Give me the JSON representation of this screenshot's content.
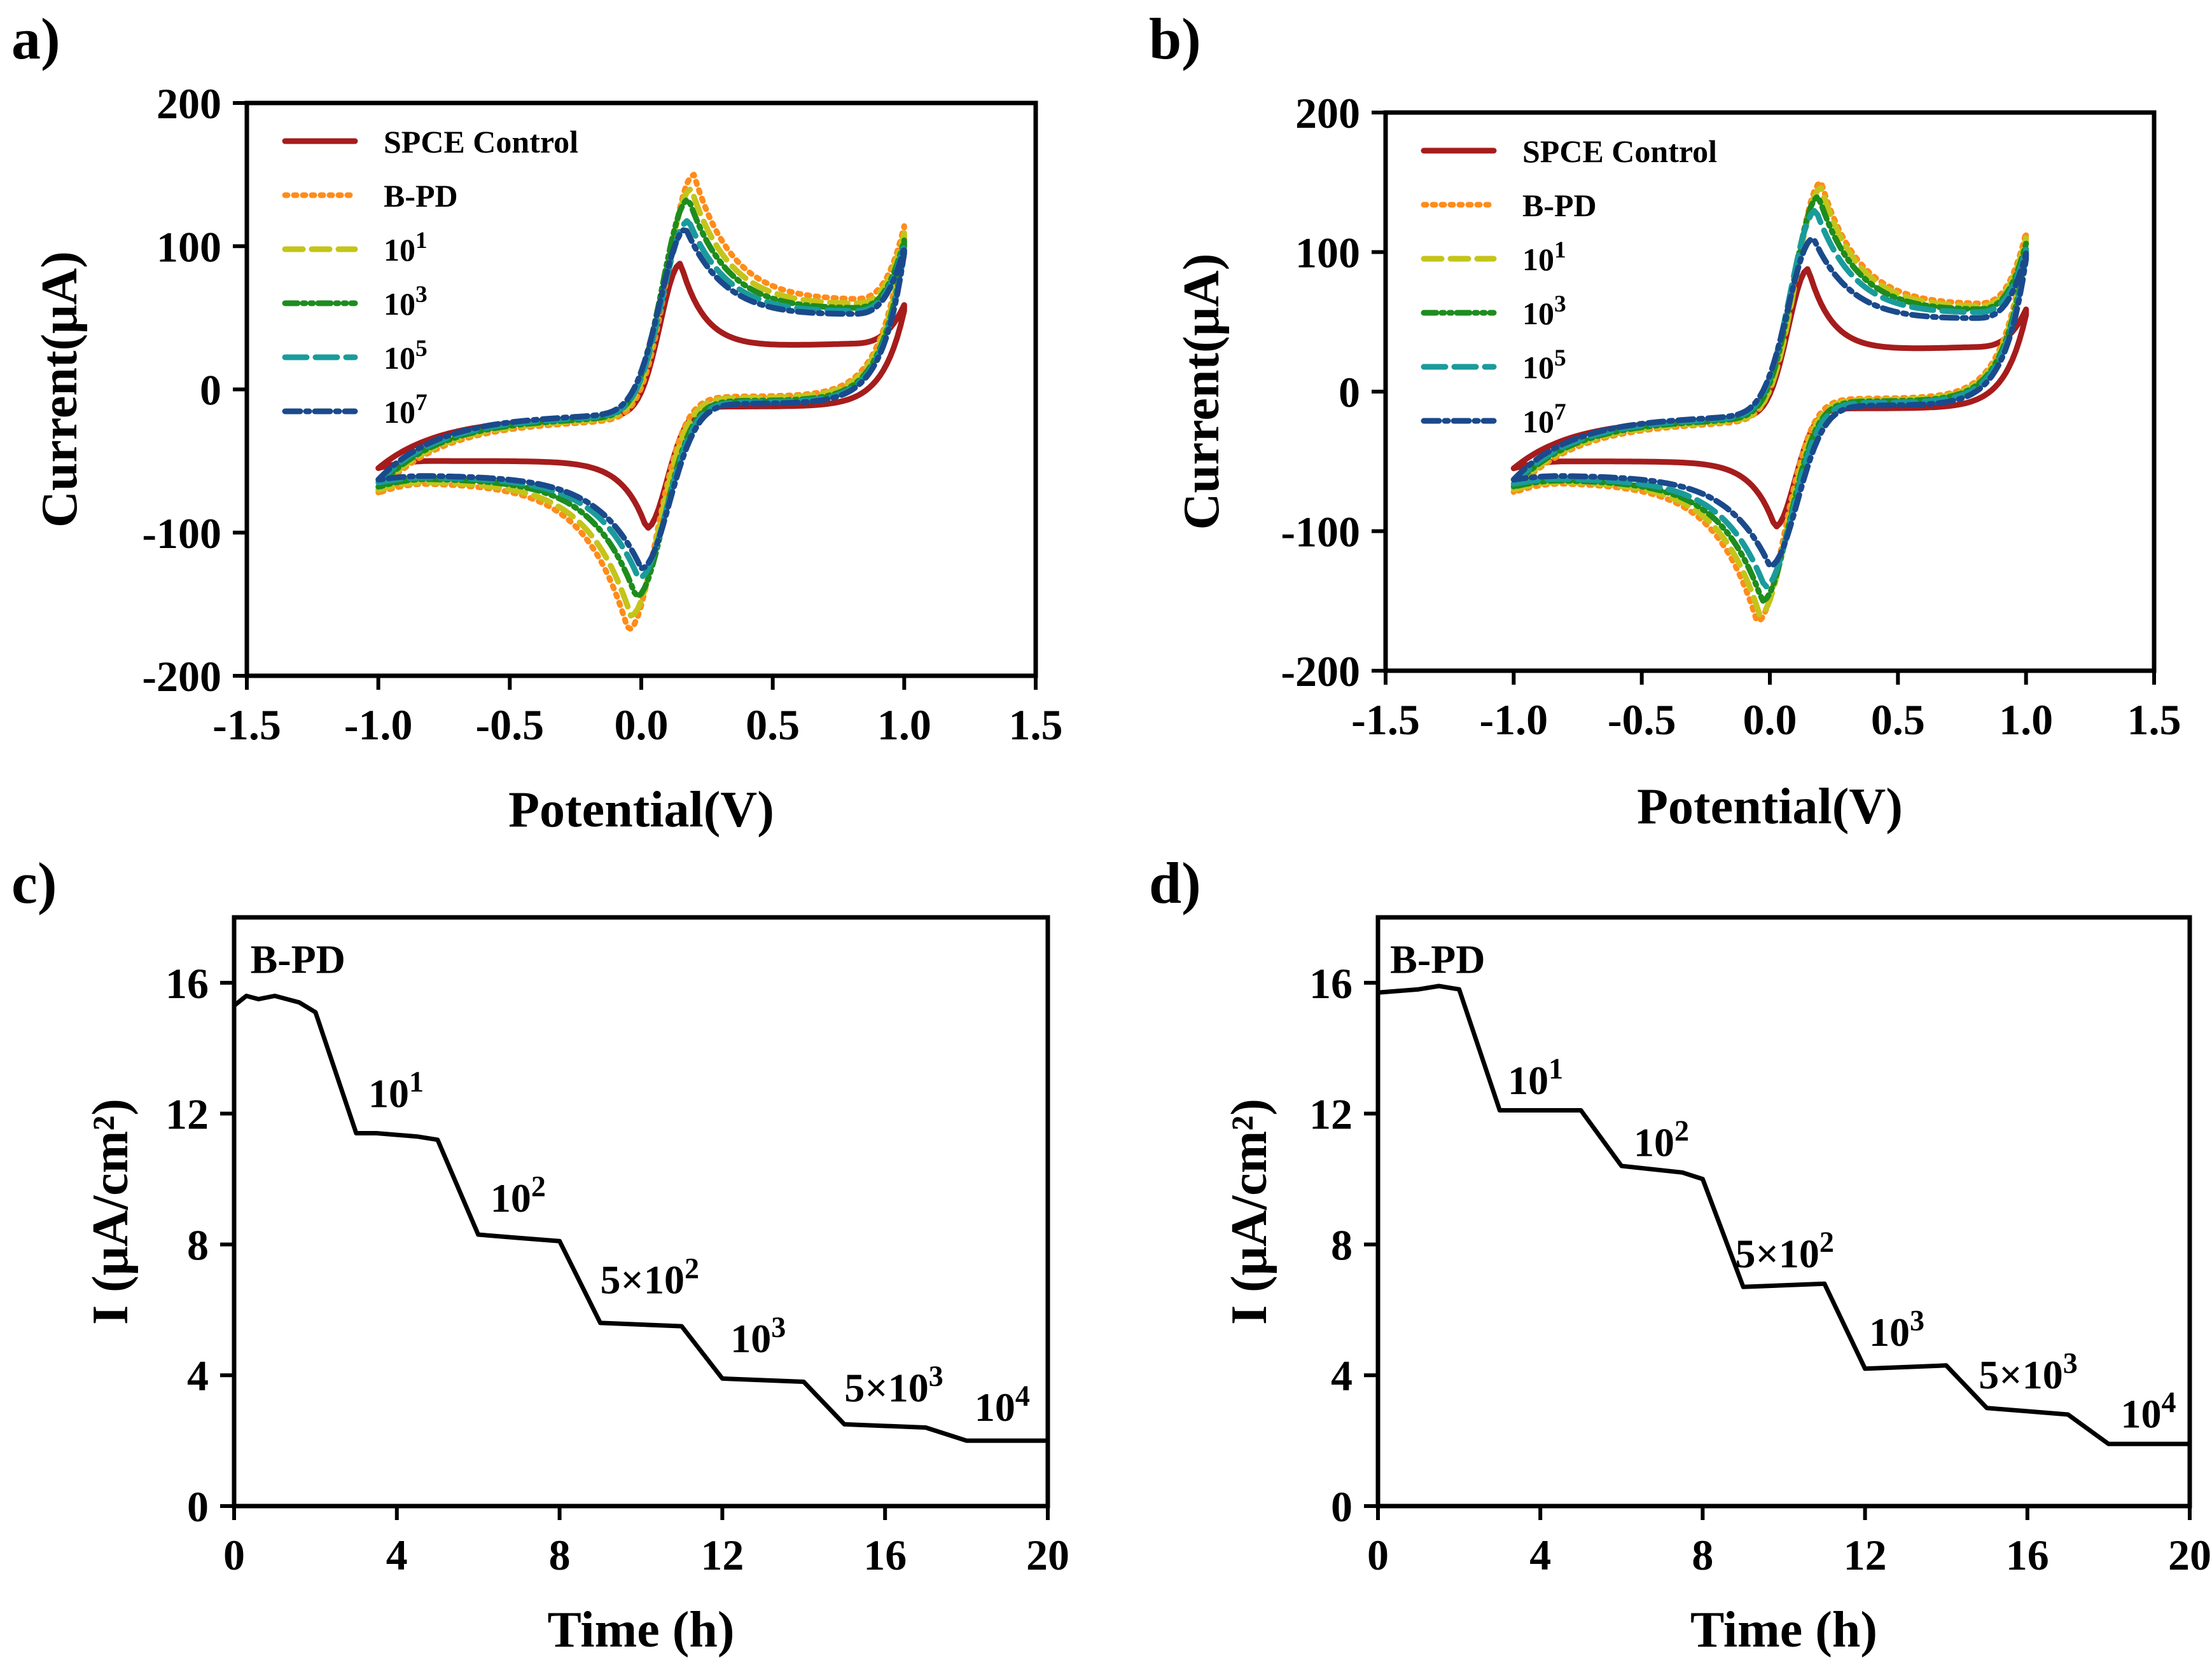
{
  "chart_data": [
    {
      "panel_label": "a)",
      "type": "line",
      "xlabel": "Potential(V)",
      "ylabel": "Current(μA)",
      "xlim": [
        -1.5,
        1.5
      ],
      "ylim": [
        -200,
        200
      ],
      "xticks": [
        -1.5,
        -1.0,
        -0.5,
        0.0,
        0.5,
        1.0,
        1.5
      ],
      "xtick_labels": [
        "-1.5",
        "-1.0",
        "-0.5",
        "0.0",
        "0.5",
        "1.0",
        "1.5"
      ],
      "yticks": [
        -200,
        -100,
        0,
        100,
        200
      ],
      "ytick_labels": [
        "-200",
        "-100",
        "0",
        "100",
        "200"
      ],
      "legend_position": "top-left",
      "series": [
        {
          "name": "SPCE Control",
          "legend_base": "SPCE Control",
          "legend_sup": "",
          "color": "#a61c1c",
          "dash": "solid",
          "params": {
            "ipa": 88,
            "epa": 0.15,
            "ipc": -97,
            "epc": 0.02,
            "start": -55,
            "end": 55,
            "capUp": 28,
            "capDn": -12,
            "preOx": -20,
            "postRed": -50,
            "ba": 0.05,
            "sa": 0.2,
            "bc": 0.04,
            "sc": 0.18
          }
        },
        {
          "name": "B-PD",
          "legend_base": "B-PD",
          "legend_sup": "",
          "color": "#ff8c1a",
          "dash": "dotted",
          "params": {
            "ipa": 150,
            "epa": 0.2,
            "ipc": -168,
            "epc": -0.05,
            "start": -72,
            "end": 110,
            "capUp": 58,
            "capDn": -5,
            "preOx": -22,
            "postRed": -65,
            "ba": 0.08,
            "sa": 0.33,
            "bc": 0.08,
            "sc": 0.33
          }
        },
        {
          "name": "10^1",
          "legend_base": "10",
          "legend_sup": "1",
          "color": "#c4c41a",
          "dash": "dashed",
          "params": {
            "ipa": 140,
            "epa": 0.19,
            "ipc": -158,
            "epc": -0.04,
            "start": -70,
            "end": 105,
            "capUp": 55,
            "capDn": -6,
            "preOx": -21,
            "postRed": -64,
            "ba": 0.08,
            "sa": 0.33,
            "bc": 0.08,
            "sc": 0.33
          }
        },
        {
          "name": "10^3",
          "legend_base": "10",
          "legend_sup": "3",
          "color": "#1e8c1e",
          "dash": "dashdotdot",
          "params": {
            "ipa": 133,
            "epa": 0.18,
            "ipc": -145,
            "epc": -0.02,
            "start": -68,
            "end": 100,
            "capUp": 52,
            "capDn": -8,
            "preOx": -20,
            "postRed": -62,
            "ba": 0.08,
            "sa": 0.33,
            "bc": 0.08,
            "sc": 0.33
          }
        },
        {
          "name": "10^5",
          "legend_base": "10",
          "legend_sup": "5",
          "color": "#1a9b9b",
          "dash": "longdash",
          "params": {
            "ipa": 118,
            "epa": 0.18,
            "ipc": -132,
            "epc": -0.01,
            "start": -65,
            "end": 97,
            "capUp": 50,
            "capDn": -9,
            "preOx": -19,
            "postRed": -61,
            "ba": 0.08,
            "sa": 0.33,
            "bc": 0.08,
            "sc": 0.33
          }
        },
        {
          "name": "10^7",
          "legend_base": "10",
          "legend_sup": "7",
          "color": "#1a4a8c",
          "dash": "dashdot",
          "params": {
            "ipa": 112,
            "epa": 0.17,
            "ipc": -125,
            "epc": 0.0,
            "start": -63,
            "end": 95,
            "capUp": 48,
            "capDn": -10,
            "preOx": -18,
            "postRed": -60,
            "ba": 0.08,
            "sa": 0.33,
            "bc": 0.08,
            "sc": 0.33
          }
        }
      ]
    },
    {
      "panel_label": "b)",
      "type": "line",
      "xlabel": "Potential(V)",
      "ylabel": "Current(μA)",
      "xlim": [
        -1.5,
        1.5
      ],
      "ylim": [
        -200,
        200
      ],
      "xticks": [
        -1.5,
        -1.0,
        -0.5,
        0.0,
        0.5,
        1.0,
        1.5
      ],
      "xtick_labels": [
        "-1.5",
        "-1.0",
        "-0.5",
        "0.0",
        "0.5",
        "1.0",
        "1.5"
      ],
      "yticks": [
        -200,
        -100,
        0,
        100,
        200
      ],
      "ytick_labels": [
        "-200",
        "-100",
        "0",
        "100",
        "200"
      ],
      "legend_position": "top-left",
      "series": [
        {
          "name": "SPCE Control",
          "legend_base": "SPCE Control",
          "legend_sup": "",
          "color": "#a61c1c",
          "dash": "solid",
          "params": {
            "ipa": 88,
            "epa": 0.15,
            "ipc": -97,
            "epc": 0.02,
            "start": -55,
            "end": 55,
            "capUp": 28,
            "capDn": -12,
            "preOx": -20,
            "postRed": -50,
            "ba": 0.05,
            "sa": 0.2,
            "bc": 0.04,
            "sc": 0.18
          }
        },
        {
          "name": "B-PD",
          "legend_base": "B-PD",
          "legend_sup": "",
          "color": "#ff8c1a",
          "dash": "dotted",
          "params": {
            "ipa": 150,
            "epa": 0.2,
            "ipc": -165,
            "epc": -0.05,
            "start": -72,
            "end": 110,
            "capUp": 58,
            "capDn": -5,
            "preOx": -22,
            "postRed": -65,
            "ba": 0.08,
            "sa": 0.33,
            "bc": 0.08,
            "sc": 0.33
          }
        },
        {
          "name": "10^1",
          "legend_base": "10",
          "legend_sup": "1",
          "color": "#c4c41a",
          "dash": "dashed",
          "params": {
            "ipa": 146,
            "epa": 0.2,
            "ipc": -160,
            "epc": -0.04,
            "start": -70,
            "end": 106,
            "capUp": 56,
            "capDn": -6,
            "preOx": -21,
            "postRed": -64,
            "ba": 0.08,
            "sa": 0.33,
            "bc": 0.08,
            "sc": 0.33
          }
        },
        {
          "name": "10^3",
          "legend_base": "10",
          "legend_sup": "3",
          "color": "#1e8c1e",
          "dash": "dashdotdot",
          "params": {
            "ipa": 140,
            "epa": 0.19,
            "ipc": -150,
            "epc": -0.03,
            "start": -68,
            "end": 102,
            "capUp": 54,
            "capDn": -7,
            "preOx": -20,
            "postRed": -63,
            "ba": 0.08,
            "sa": 0.33,
            "bc": 0.08,
            "sc": 0.33
          }
        },
        {
          "name": "10^5",
          "legend_base": "10",
          "legend_sup": "5",
          "color": "#1a9b9b",
          "dash": "longdash",
          "params": {
            "ipa": 130,
            "epa": 0.18,
            "ipc": -140,
            "epc": -0.02,
            "start": -66,
            "end": 98,
            "capUp": 52,
            "capDn": -8,
            "preOx": -19,
            "postRed": -62,
            "ba": 0.08,
            "sa": 0.33,
            "bc": 0.08,
            "sc": 0.33
          }
        },
        {
          "name": "10^7",
          "legend_base": "10",
          "legend_sup": "7",
          "color": "#1a4a8c",
          "dash": "dashdot",
          "params": {
            "ipa": 110,
            "epa": 0.17,
            "ipc": -125,
            "epc": 0.0,
            "start": -63,
            "end": 95,
            "capUp": 48,
            "capDn": -10,
            "preOx": -18,
            "postRed": -60,
            "ba": 0.08,
            "sa": 0.33,
            "bc": 0.08,
            "sc": 0.33
          }
        }
      ]
    },
    {
      "panel_label": "c)",
      "type": "line",
      "xlabel": "Time (h)",
      "ylabel": "I (μA/cm²)",
      "xlim": [
        0,
        20
      ],
      "ylim": [
        0,
        18
      ],
      "xticks": [
        0,
        4,
        8,
        12,
        16,
        20
      ],
      "xtick_labels": [
        "0",
        "4",
        "8",
        "12",
        "16",
        "20"
      ],
      "yticks": [
        0,
        4,
        8,
        12,
        16
      ],
      "ytick_labels": [
        "0",
        "4",
        "8",
        "12",
        "16"
      ],
      "series": [
        {
          "name": "I",
          "color": "#000000",
          "x": [
            0,
            0.3,
            0.6,
            1.0,
            1.3,
            1.6,
            2.0,
            3.0,
            3.5,
            4.5,
            5.0,
            6.0,
            7.0,
            8.0,
            9.0,
            11.0,
            12.0,
            14.0,
            15.0,
            17.0,
            18.0,
            20.0
          ],
          "y": [
            15.3,
            15.6,
            15.5,
            15.6,
            15.5,
            15.4,
            15.1,
            11.4,
            11.4,
            11.3,
            11.2,
            8.3,
            8.2,
            8.1,
            5.6,
            5.5,
            3.9,
            3.8,
            2.5,
            2.4,
            2.0,
            2.0
          ]
        }
      ],
      "annotations": [
        {
          "base": "B-PD",
          "sup": "",
          "x": 0.4,
          "y": 16.3
        },
        {
          "base": "10",
          "sup": "1",
          "x": 3.3,
          "y": 12.2
        },
        {
          "base": "10",
          "sup": "2",
          "x": 6.3,
          "y": 9.0
        },
        {
          "base": "5×10",
          "sup": "2",
          "x": 9.0,
          "y": 6.5
        },
        {
          "base": "10",
          "sup": "3",
          "x": 12.2,
          "y": 4.7
        },
        {
          "base": "5×10",
          "sup": "3",
          "x": 15.0,
          "y": 3.2
        },
        {
          "base": "10",
          "sup": "4",
          "x": 18.2,
          "y": 2.6
        }
      ]
    },
    {
      "panel_label": "d)",
      "type": "line",
      "xlabel": "Time (h)",
      "ylabel": "I (μA/cm²)",
      "xlim": [
        0,
        20
      ],
      "ylim": [
        0,
        18
      ],
      "xticks": [
        0,
        4,
        8,
        12,
        16,
        20
      ],
      "xtick_labels": [
        "0",
        "4",
        "8",
        "12",
        "16",
        "20"
      ],
      "yticks": [
        0,
        4,
        8,
        12,
        16
      ],
      "ytick_labels": [
        "0",
        "4",
        "8",
        "12",
        "16"
      ],
      "series": [
        {
          "name": "I",
          "color": "#000000",
          "x": [
            0,
            1.0,
            1.5,
            2.0,
            3.0,
            5.0,
            6.0,
            7.5,
            8.0,
            9.0,
            11.0,
            12.0,
            14.0,
            15.0,
            17.0,
            18.0,
            20.0
          ],
          "y": [
            15.7,
            15.8,
            15.9,
            15.8,
            12.1,
            12.1,
            10.4,
            10.2,
            10.0,
            6.7,
            6.8,
            4.2,
            4.3,
            3.0,
            2.8,
            1.9,
            1.9
          ]
        }
      ],
      "annotations": [
        {
          "base": "B-PD",
          "sup": "",
          "x": 0.3,
          "y": 16.3
        },
        {
          "base": "10",
          "sup": "1",
          "x": 3.2,
          "y": 12.6
        },
        {
          "base": "10",
          "sup": "2",
          "x": 6.3,
          "y": 10.7
        },
        {
          "base": "5×10",
          "sup": "2",
          "x": 8.8,
          "y": 7.3
        },
        {
          "base": "10",
          "sup": "3",
          "x": 12.1,
          "y": 4.9
        },
        {
          "base": "5×10",
          "sup": "3",
          "x": 14.8,
          "y": 3.6
        },
        {
          "base": "10",
          "sup": "4",
          "x": 18.3,
          "y": 2.4
        }
      ]
    }
  ]
}
